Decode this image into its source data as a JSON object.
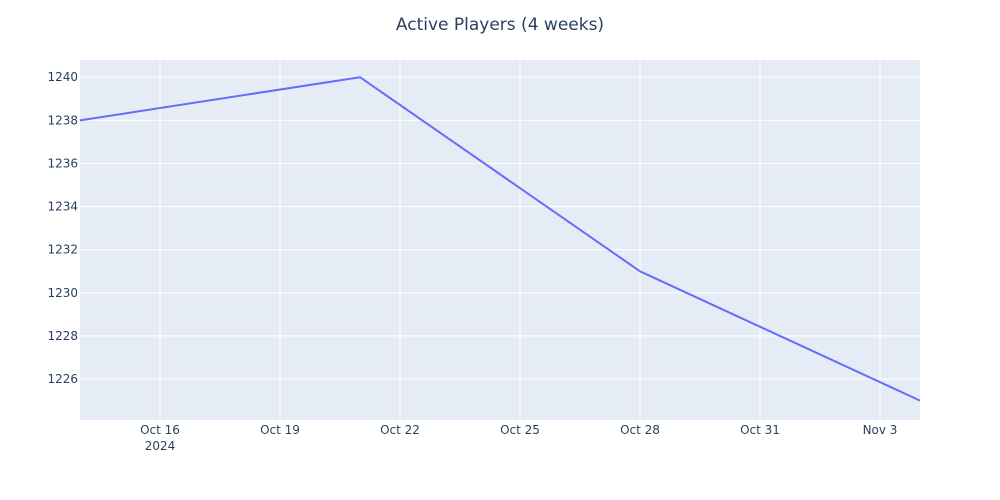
{
  "chart_data": {
    "type": "line",
    "title": "Active Players (4 weeks)",
    "xlabel": "",
    "ylabel": "",
    "x_axis_type": "date",
    "xlim": [
      "2024-10-14",
      "2024-11-04"
    ],
    "ylim": [
      1224.1,
      1240.8
    ],
    "grid": true,
    "legend": "none",
    "colors": {
      "plot_bg": "#e5ecf6",
      "grid": "#ffffff",
      "line": "#636efa",
      "text": "#2a3f5f"
    },
    "x_ticks": [
      {
        "date": "2024-10-16",
        "label": "Oct 16",
        "sublabel": "2024"
      },
      {
        "date": "2024-10-19",
        "label": "Oct 19"
      },
      {
        "date": "2024-10-22",
        "label": "Oct 22"
      },
      {
        "date": "2024-10-25",
        "label": "Oct 25"
      },
      {
        "date": "2024-10-28",
        "label": "Oct 28"
      },
      {
        "date": "2024-10-31",
        "label": "Oct 31"
      },
      {
        "date": "2024-11-03",
        "label": "Nov 3"
      }
    ],
    "y_ticks": [
      1226,
      1228,
      1230,
      1232,
      1234,
      1236,
      1238,
      1240
    ],
    "series": [
      {
        "x": [
          "2024-10-14",
          "2024-10-21",
          "2024-10-28",
          "2024-11-04"
        ],
        "y": [
          1238,
          1240,
          1231,
          1225
        ]
      }
    ]
  }
}
